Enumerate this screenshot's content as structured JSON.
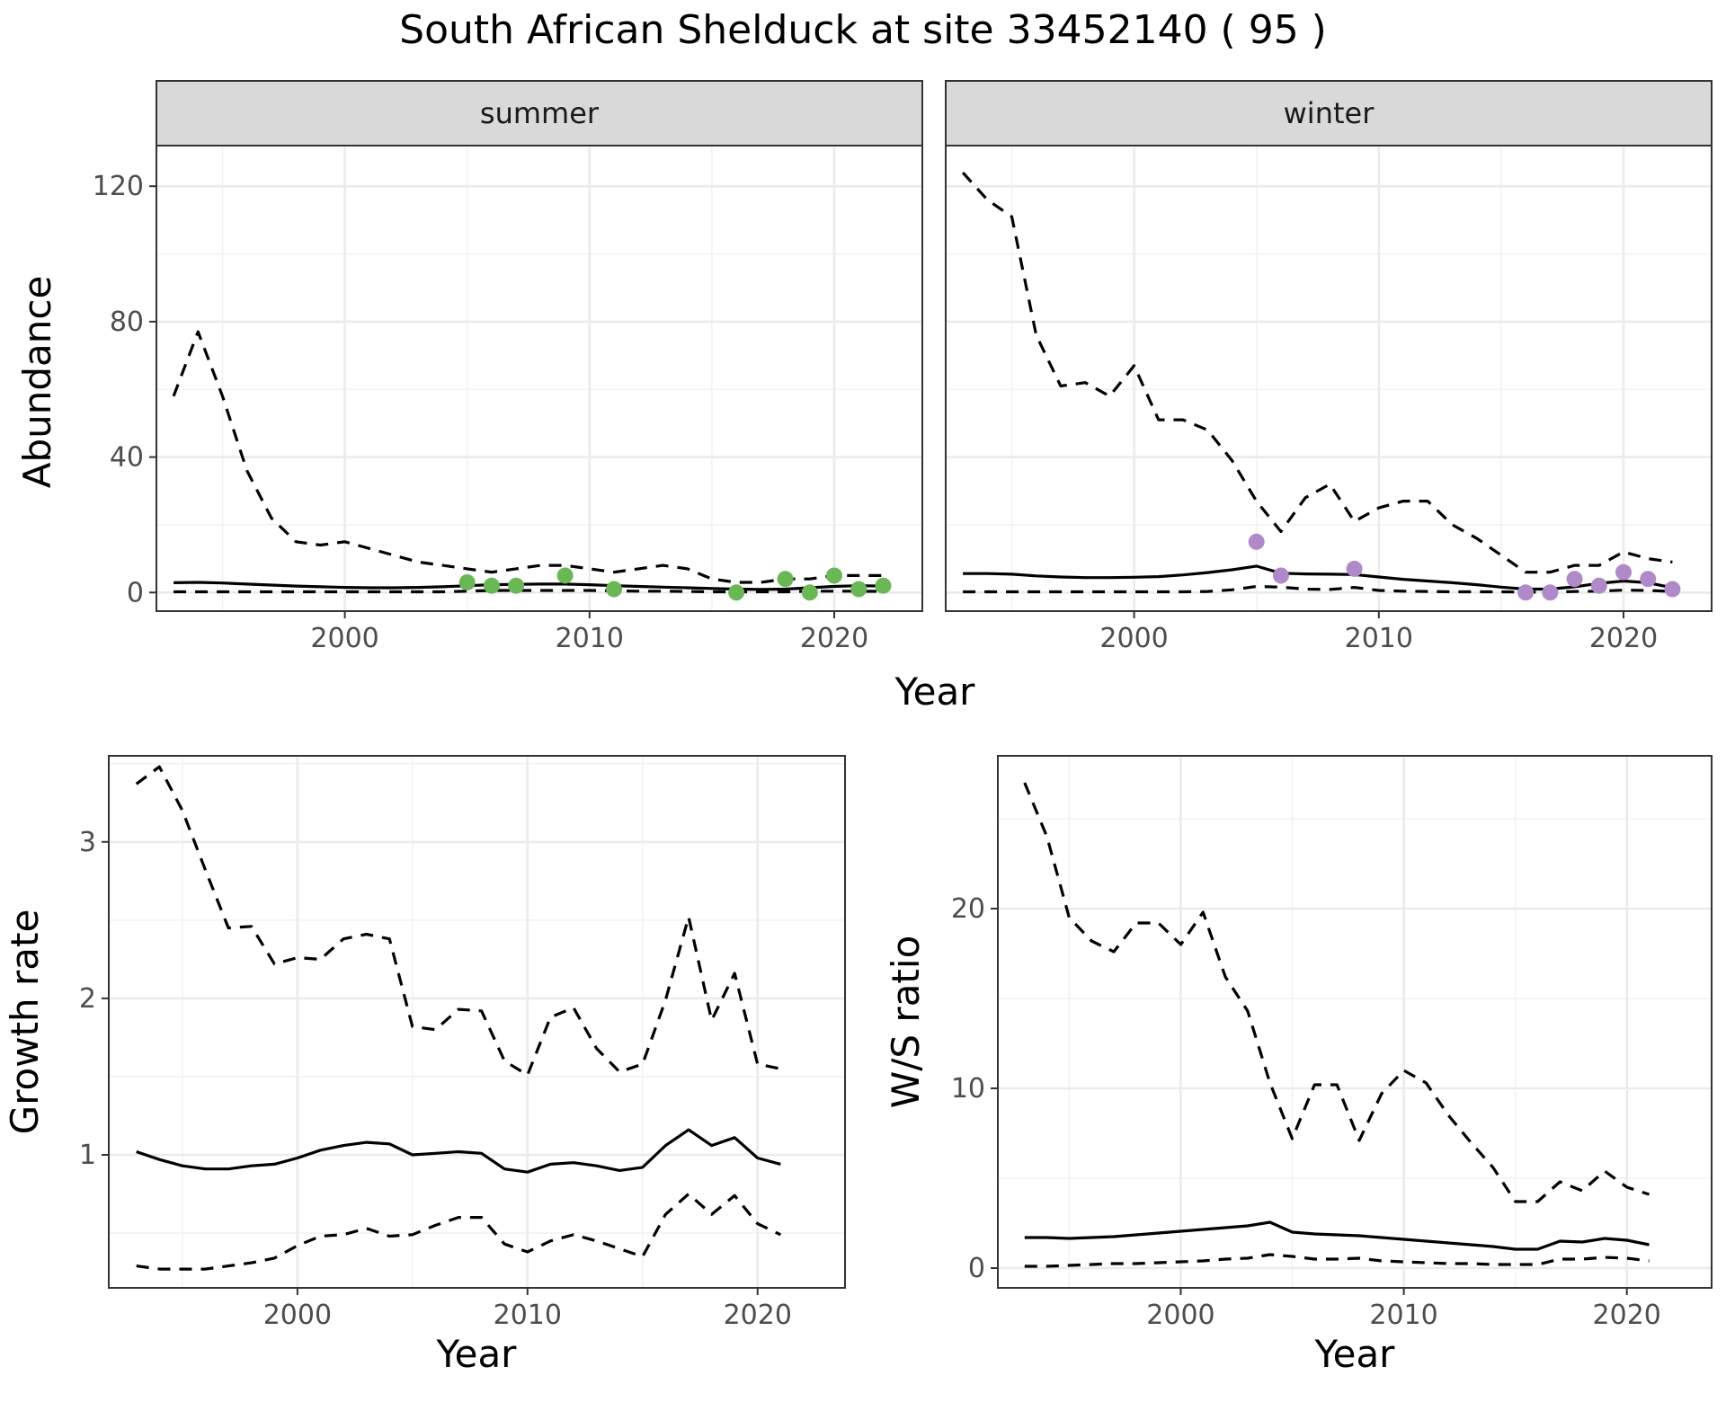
{
  "title": "South African Shelduck at site 33452140 ( 95 )",
  "chart_data": [
    {
      "type": "line",
      "facet": "summer",
      "xlabel": "Year",
      "ylabel": "Abundance",
      "xlim": [
        1992.3,
        2023.6
      ],
      "ylim": [
        -5.5,
        132
      ],
      "x_ticks": [
        2000,
        2010,
        2020
      ],
      "y_ticks": [
        0,
        40,
        80,
        120
      ],
      "grid": true,
      "point_color": "#6ab855",
      "series": [
        {
          "role": "estimate",
          "style": "solid",
          "x": [
            1993,
            1994,
            1995,
            1996,
            1997,
            1998,
            1999,
            2000,
            2001,
            2002,
            2003,
            2004,
            2005,
            2006,
            2007,
            2008,
            2009,
            2010,
            2011,
            2012,
            2013,
            2014,
            2015,
            2016,
            2017,
            2018,
            2019,
            2020,
            2021,
            2022
          ],
          "y": [
            2.9,
            3.0,
            2.8,
            2.5,
            2.2,
            1.9,
            1.7,
            1.5,
            1.4,
            1.4,
            1.5,
            1.7,
            2.0,
            2.3,
            2.4,
            2.5,
            2.5,
            2.3,
            2.0,
            1.8,
            1.6,
            1.4,
            1.2,
            1.0,
            0.9,
            1.0,
            1.4,
            1.8,
            2.0,
            1.9
          ]
        },
        {
          "role": "upper",
          "style": "dashed",
          "x": [
            1993,
            1994,
            1995,
            1996,
            1997,
            1998,
            1999,
            2000,
            2001,
            2002,
            2003,
            2004,
            2005,
            2006,
            2007,
            2008,
            2009,
            2010,
            2011,
            2012,
            2013,
            2014,
            2015,
            2016,
            2017,
            2018,
            2019,
            2020,
            2021,
            2022
          ],
          "y": [
            58,
            77,
            58,
            36,
            22,
            15,
            14,
            15,
            13,
            11,
            9,
            8,
            7,
            6,
            7,
            8,
            8,
            7,
            6,
            7,
            8,
            7,
            4,
            3,
            3,
            4,
            4,
            5,
            5,
            5
          ]
        },
        {
          "role": "lower",
          "style": "dashed",
          "x": [
            1993,
            1994,
            1995,
            1996,
            1997,
            1998,
            1999,
            2000,
            2001,
            2002,
            2003,
            2004,
            2005,
            2006,
            2007,
            2008,
            2009,
            2010,
            2011,
            2012,
            2013,
            2014,
            2015,
            2016,
            2017,
            2018,
            2019,
            2020,
            2021,
            2022
          ],
          "y": [
            0.2,
            0.2,
            0.2,
            0.2,
            0.2,
            0.2,
            0.2,
            0.2,
            0.2,
            0.2,
            0.2,
            0.2,
            0.4,
            0.6,
            0.6,
            0.6,
            0.6,
            0.6,
            0.5,
            0.4,
            0.4,
            0.3,
            0.2,
            0.2,
            0.2,
            0.2,
            0.4,
            0.4,
            0.4,
            0.3
          ]
        }
      ],
      "points": {
        "x": [
          2005,
          2006,
          2007,
          2009,
          2011,
          2016,
          2018,
          2019,
          2020,
          2021,
          2022
        ],
        "y": [
          3,
          2,
          2,
          5,
          1,
          0,
          4,
          0,
          5,
          1,
          2
        ]
      }
    },
    {
      "type": "line",
      "facet": "winter",
      "xlabel": "Year",
      "ylabel": "Abundance",
      "xlim": [
        1992.3,
        2023.6
      ],
      "ylim": [
        -5.5,
        132
      ],
      "x_ticks": [
        2000,
        2010,
        2020
      ],
      "y_ticks": [
        0,
        40,
        80,
        120
      ],
      "grid": true,
      "point_color": "#b08ac8",
      "series": [
        {
          "role": "estimate",
          "style": "solid",
          "x": [
            1993,
            1994,
            1995,
            1996,
            1997,
            1998,
            1999,
            2000,
            2001,
            2002,
            2003,
            2004,
            2005,
            2006,
            2007,
            2008,
            2009,
            2010,
            2011,
            2012,
            2013,
            2014,
            2015,
            2016,
            2017,
            2018,
            2019,
            2020,
            2021,
            2022
          ],
          "y": [
            5.6,
            5.6,
            5.4,
            4.9,
            4.6,
            4.4,
            4.4,
            4.5,
            4.7,
            5.2,
            5.9,
            6.7,
            7.8,
            5.7,
            5.5,
            5.4,
            5.3,
            4.6,
            3.9,
            3.4,
            2.9,
            2.3,
            1.6,
            1.0,
            1.0,
            1.7,
            2.7,
            3.4,
            2.9,
            1.4
          ]
        },
        {
          "role": "upper",
          "style": "dashed",
          "x": [
            1993,
            1994,
            1995,
            1996,
            1997,
            1998,
            1999,
            2000,
            2001,
            2002,
            2003,
            2004,
            2005,
            2006,
            2007,
            2008,
            2009,
            2010,
            2011,
            2012,
            2013,
            2014,
            2015,
            2016,
            2017,
            2018,
            2019,
            2020,
            2021,
            2022
          ],
          "y": [
            124,
            116,
            111,
            76,
            61,
            62,
            58,
            67,
            51,
            51,
            48,
            39,
            27,
            18,
            28,
            32,
            21,
            25,
            27,
            27,
            20,
            16,
            11,
            6,
            6,
            8,
            8,
            12,
            10,
            9
          ]
        },
        {
          "role": "lower",
          "style": "dashed",
          "x": [
            1993,
            1994,
            1995,
            1996,
            1997,
            1998,
            1999,
            2000,
            2001,
            2002,
            2003,
            2004,
            2005,
            2006,
            2007,
            2008,
            2009,
            2010,
            2011,
            2012,
            2013,
            2014,
            2015,
            2016,
            2017,
            2018,
            2019,
            2020,
            2021,
            2022
          ],
          "y": [
            0.2,
            0.2,
            0.2,
            0.2,
            0.2,
            0.2,
            0.2,
            0.2,
            0.2,
            0.2,
            0.3,
            0.8,
            1.8,
            1.6,
            1.0,
            0.9,
            1.5,
            0.6,
            0.4,
            0.3,
            0.2,
            0.2,
            0.2,
            0.1,
            0.1,
            0.3,
            0.4,
            0.7,
            0.6,
            0.3
          ]
        }
      ],
      "points": {
        "x": [
          2005,
          2006,
          2009,
          2016,
          2017,
          2018,
          2019,
          2020,
          2021,
          2022
        ],
        "y": [
          15,
          5,
          7,
          0,
          0,
          4,
          2,
          6,
          4,
          1
        ]
      }
    },
    {
      "type": "line",
      "xlabel": "Year",
      "ylabel": "Growth rate",
      "xlim": [
        1991.8,
        2023.8
      ],
      "ylim": [
        0.15,
        3.55
      ],
      "x_ticks": [
        2000,
        2010,
        2020
      ],
      "y_ticks": [
        1,
        2,
        3
      ],
      "grid": true,
      "series": [
        {
          "role": "estimate",
          "style": "solid",
          "x": [
            1993,
            1994,
            1995,
            1996,
            1997,
            1998,
            1999,
            2000,
            2001,
            2002,
            2003,
            2004,
            2005,
            2006,
            2007,
            2008,
            2009,
            2010,
            2011,
            2012,
            2013,
            2014,
            2015,
            2016,
            2017,
            2018,
            2019,
            2020,
            2021
          ],
          "y": [
            1.02,
            0.97,
            0.93,
            0.91,
            0.91,
            0.93,
            0.94,
            0.98,
            1.03,
            1.06,
            1.08,
            1.07,
            1.0,
            1.01,
            1.02,
            1.01,
            0.91,
            0.89,
            0.94,
            0.95,
            0.93,
            0.9,
            0.92,
            1.06,
            1.16,
            1.06,
            1.11,
            0.98,
            0.94
          ]
        },
        {
          "role": "upper",
          "style": "dashed",
          "x": [
            1993,
            1994,
            1995,
            1996,
            1997,
            1998,
            1999,
            2000,
            2001,
            2002,
            2003,
            2004,
            2005,
            2006,
            2007,
            2008,
            2009,
            2010,
            2011,
            2012,
            2013,
            2014,
            2015,
            2016,
            2017,
            2018,
            2019,
            2020,
            2021
          ],
          "y": [
            3.37,
            3.48,
            3.2,
            2.82,
            2.45,
            2.46,
            2.22,
            2.26,
            2.25,
            2.38,
            2.41,
            2.38,
            1.82,
            1.8,
            1.93,
            1.92,
            1.6,
            1.51,
            1.88,
            1.94,
            1.68,
            1.53,
            1.58,
            1.99,
            2.52,
            1.86,
            2.16,
            1.58,
            1.55
          ]
        },
        {
          "role": "lower",
          "style": "dashed",
          "x": [
            1993,
            1994,
            1995,
            1996,
            1997,
            1998,
            1999,
            2000,
            2001,
            2002,
            2003,
            2004,
            2005,
            2006,
            2007,
            2008,
            2009,
            2010,
            2011,
            2012,
            2013,
            2014,
            2015,
            2016,
            2017,
            2018,
            2019,
            2020,
            2021
          ],
          "y": [
            0.29,
            0.27,
            0.27,
            0.27,
            0.29,
            0.31,
            0.34,
            0.42,
            0.48,
            0.49,
            0.53,
            0.48,
            0.49,
            0.55,
            0.6,
            0.6,
            0.43,
            0.38,
            0.45,
            0.49,
            0.45,
            0.4,
            0.35,
            0.62,
            0.75,
            0.62,
            0.74,
            0.56,
            0.49
          ]
        }
      ]
    },
    {
      "type": "line",
      "xlabel": "Year",
      "ylabel": "W/S ratio",
      "xlim": [
        1991.8,
        2023.8
      ],
      "ylim": [
        -1.1,
        28.5
      ],
      "x_ticks": [
        2000,
        2010,
        2020
      ],
      "y_ticks": [
        0,
        10,
        20
      ],
      "grid": true,
      "series": [
        {
          "role": "estimate",
          "style": "solid",
          "x": [
            1993,
            1994,
            1995,
            1996,
            1997,
            1998,
            1999,
            2000,
            2001,
            2002,
            2003,
            2004,
            2005,
            2006,
            2007,
            2008,
            2009,
            2010,
            2011,
            2012,
            2013,
            2014,
            2015,
            2016,
            2017,
            2018,
            2019,
            2020,
            2021
          ],
          "y": [
            1.7,
            1.7,
            1.65,
            1.7,
            1.75,
            1.85,
            1.95,
            2.05,
            2.15,
            2.25,
            2.35,
            2.55,
            2.0,
            1.9,
            1.85,
            1.8,
            1.7,
            1.6,
            1.5,
            1.4,
            1.3,
            1.2,
            1.05,
            1.05,
            1.5,
            1.45,
            1.65,
            1.55,
            1.3
          ]
        },
        {
          "role": "upper",
          "style": "dashed",
          "x": [
            1993,
            1994,
            1995,
            1996,
            1997,
            1998,
            1999,
            2000,
            2001,
            2002,
            2003,
            2004,
            2005,
            2006,
            2007,
            2008,
            2009,
            2010,
            2011,
            2012,
            2013,
            2014,
            2015,
            2016,
            2017,
            2018,
            2019,
            2020,
            2021
          ],
          "y": [
            27,
            24,
            19.5,
            18.2,
            17.6,
            19.2,
            19.2,
            18.0,
            19.8,
            16.2,
            14.3,
            10.3,
            7.2,
            10.2,
            10.2,
            7.1,
            9.7,
            11.0,
            10.3,
            8.5,
            7.0,
            5.6,
            3.7,
            3.7,
            4.8,
            4.3,
            5.4,
            4.5,
            4.1
          ]
        },
        {
          "role": "lower",
          "style": "dashed",
          "x": [
            1993,
            1994,
            1995,
            1996,
            1997,
            1998,
            1999,
            2000,
            2001,
            2002,
            2003,
            2004,
            2005,
            2006,
            2007,
            2008,
            2009,
            2010,
            2011,
            2012,
            2013,
            2014,
            2015,
            2016,
            2017,
            2018,
            2019,
            2020,
            2021
          ],
          "y": [
            0.1,
            0.1,
            0.15,
            0.2,
            0.25,
            0.25,
            0.3,
            0.35,
            0.4,
            0.5,
            0.55,
            0.75,
            0.65,
            0.5,
            0.5,
            0.55,
            0.4,
            0.35,
            0.3,
            0.25,
            0.25,
            0.2,
            0.2,
            0.2,
            0.5,
            0.5,
            0.6,
            0.55,
            0.4
          ]
        }
      ]
    }
  ]
}
